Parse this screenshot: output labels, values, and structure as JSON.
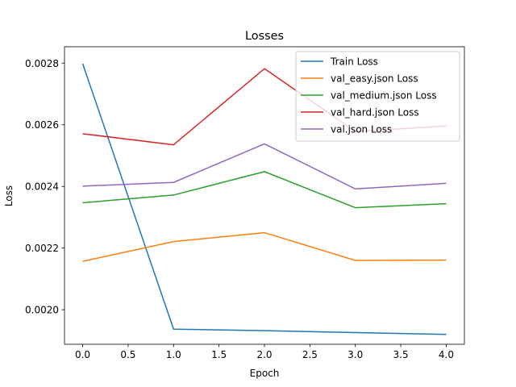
{
  "chart_data": {
    "type": "line",
    "title": "Losses",
    "xlabel": "Epoch",
    "ylabel": "Loss",
    "x": [
      0,
      1,
      2,
      3,
      4
    ],
    "xlim": [
      -0.2,
      4.2
    ],
    "ylim": [
      0.001888,
      0.002853
    ],
    "xticks": [
      0.0,
      0.5,
      1.0,
      1.5,
      2.0,
      2.5,
      3.0,
      3.5,
      4.0
    ],
    "xtick_labels": [
      "0.0",
      "0.5",
      "1.0",
      "1.5",
      "2.0",
      "2.5",
      "3.0",
      "3.5",
      "4.0"
    ],
    "yticks": [
      0.002,
      0.0022,
      0.0024,
      0.0026,
      0.0028
    ],
    "ytick_labels": [
      "0.0020",
      "0.0022",
      "0.0024",
      "0.0026",
      "0.0028"
    ],
    "grid": false,
    "legend": "top-right",
    "series": [
      {
        "name": "Train Loss",
        "color": "#1f77b4",
        "values": [
          0.002798,
          0.001937,
          0.001932,
          0.001926,
          0.00192
        ]
      },
      {
        "name": "val_easy.json Loss",
        "color": "#ff7f0e",
        "values": [
          0.002157,
          0.002221,
          0.00225,
          0.00216,
          0.002161
        ]
      },
      {
        "name": "val_medium.json Loss",
        "color": "#2ca02c",
        "values": [
          0.002347,
          0.002372,
          0.002448,
          0.002331,
          0.002344
        ]
      },
      {
        "name": "val_hard.json Loss",
        "color": "#d62728",
        "values": [
          0.002571,
          0.002535,
          0.002782,
          0.002578,
          0.002596
        ]
      },
      {
        "name": "val.json Loss",
        "color": "#9467bd",
        "values": [
          0.002401,
          0.002413,
          0.002538,
          0.002392,
          0.00241
        ]
      }
    ]
  }
}
